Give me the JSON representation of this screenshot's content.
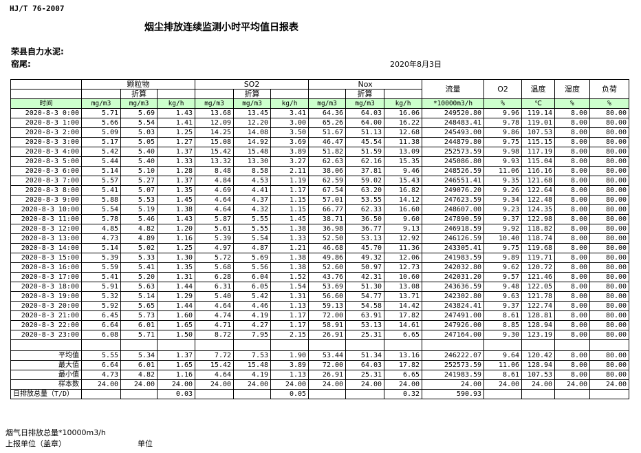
{
  "header": {
    "standard": "HJ/T  76-2007",
    "title": "烟尘排放连续监测小时平均值日报表",
    "company": "荣县自力水泥:",
    "kiln": "窑尾:",
    "date": "2020年8月3日"
  },
  "table": {
    "groups": [
      "颗粒物",
      "SO2",
      "Nox"
    ],
    "converted": "折算",
    "single_headers": [
      "流量",
      "O2",
      "温度",
      "湿度",
      "负荷"
    ],
    "time_header": "时间",
    "units": [
      "mg/m3",
      "mg/m3",
      "kg/h",
      "mg/m3",
      "mg/m3",
      "kg/h",
      "mg/m3",
      "mg/m3",
      "kg/h",
      "*10000m3/h",
      "%",
      "℃",
      "%",
      "%"
    ],
    "rows": [
      {
        "time": "2020-8-3 0:00",
        "values": [
          "5.71",
          "5.69",
          "1.43",
          "13.68",
          "13.45",
          "3.41",
          "64.36",
          "64.03",
          "16.06",
          "249520.80",
          "9.96",
          "119.14",
          "8.00",
          "80.00"
        ]
      },
      {
        "time": "2020-8-3 1:00",
        "values": [
          "5.66",
          "5.54",
          "1.41",
          "12.09",
          "12.20",
          "3.00",
          "65.26",
          "64.00",
          "16.22",
          "248483.41",
          "9.78",
          "119.01",
          "8.00",
          "80.00"
        ]
      },
      {
        "time": "2020-8-3 2:00",
        "values": [
          "5.09",
          "5.03",
          "1.25",
          "14.25",
          "14.08",
          "3.50",
          "51.67",
          "51.13",
          "12.68",
          "245493.00",
          "9.86",
          "107.53",
          "8.00",
          "80.00"
        ]
      },
      {
        "time": "2020-8-3 3:00",
        "values": [
          "5.17",
          "5.05",
          "1.27",
          "15.08",
          "14.92",
          "3.69",
          "46.47",
          "45.54",
          "11.38",
          "244879.80",
          "9.75",
          "115.15",
          "8.00",
          "80.00"
        ]
      },
      {
        "time": "2020-8-3 4:00",
        "values": [
          "5.42",
          "5.40",
          "1.37",
          "15.42",
          "15.48",
          "3.89",
          "51.82",
          "51.59",
          "13.09",
          "252573.59",
          "9.98",
          "117.19",
          "8.00",
          "80.00"
        ]
      },
      {
        "time": "2020-8-3 5:00",
        "values": [
          "5.44",
          "5.40",
          "1.33",
          "13.32",
          "13.30",
          "3.27",
          "62.63",
          "62.16",
          "15.35",
          "245086.80",
          "9.93",
          "115.04",
          "8.00",
          "80.00"
        ]
      },
      {
        "time": "2020-8-3 6:00",
        "values": [
          "5.14",
          "5.10",
          "1.28",
          "8.48",
          "8.58",
          "2.11",
          "38.06",
          "37.81",
          "9.46",
          "248526.59",
          "11.06",
          "116.16",
          "8.00",
          "80.00"
        ]
      },
      {
        "time": "2020-8-3 7:00",
        "values": [
          "5.57",
          "5.27",
          "1.37",
          "4.84",
          "4.53",
          "1.19",
          "62.59",
          "59.02",
          "15.43",
          "246551.41",
          "9.35",
          "121.68",
          "8.00",
          "80.00"
        ]
      },
      {
        "time": "2020-8-3 8:00",
        "values": [
          "5.41",
          "5.07",
          "1.35",
          "4.69",
          "4.41",
          "1.17",
          "67.54",
          "63.20",
          "16.82",
          "249076.20",
          "9.26",
          "122.64",
          "8.00",
          "80.00"
        ]
      },
      {
        "time": "2020-8-3 9:00",
        "values": [
          "5.88",
          "5.53",
          "1.45",
          "4.64",
          "4.37",
          "1.15",
          "57.01",
          "53.55",
          "14.12",
          "247623.59",
          "9.34",
          "122.48",
          "8.00",
          "80.00"
        ]
      },
      {
        "time": "2020-8-3 10:00",
        "values": [
          "5.54",
          "5.19",
          "1.38",
          "4.64",
          "4.32",
          "1.15",
          "66.77",
          "62.33",
          "16.60",
          "248607.00",
          "9.23",
          "124.35",
          "8.00",
          "80.00"
        ]
      },
      {
        "time": "2020-8-3 11:00",
        "values": [
          "5.78",
          "5.46",
          "1.43",
          "5.87",
          "5.55",
          "1.45",
          "38.71",
          "36.50",
          "9.60",
          "247890.59",
          "9.37",
          "122.98",
          "8.00",
          "80.00"
        ]
      },
      {
        "time": "2020-8-3 12:00",
        "values": [
          "4.85",
          "4.82",
          "1.20",
          "5.61",
          "5.55",
          "1.38",
          "36.98",
          "36.77",
          "9.13",
          "246918.59",
          "9.92",
          "118.82",
          "8.00",
          "80.00"
        ]
      },
      {
        "time": "2020-8-3 13:00",
        "values": [
          "4.73",
          "4.89",
          "1.16",
          "5.39",
          "5.54",
          "1.33",
          "52.50",
          "53.13",
          "12.92",
          "246126.59",
          "10.40",
          "118.74",
          "8.00",
          "80.00"
        ]
      },
      {
        "time": "2020-8-3 14:00",
        "values": [
          "5.14",
          "5.02",
          "1.25",
          "4.97",
          "4.87",
          "1.21",
          "46.68",
          "45.70",
          "11.36",
          "243305.41",
          "9.75",
          "119.68",
          "8.00",
          "80.00"
        ]
      },
      {
        "time": "2020-8-3 15:00",
        "values": [
          "5.39",
          "5.33",
          "1.30",
          "5.72",
          "5.69",
          "1.38",
          "49.86",
          "49.32",
          "12.06",
          "241983.59",
          "9.89",
          "119.71",
          "8.00",
          "80.00"
        ]
      },
      {
        "time": "2020-8-3 16:00",
        "values": [
          "5.59",
          "5.41",
          "1.35",
          "5.68",
          "5.56",
          "1.38",
          "52.60",
          "50.97",
          "12.73",
          "242032.80",
          "9.62",
          "120.72",
          "8.00",
          "80.00"
        ]
      },
      {
        "time": "2020-8-3 17:00",
        "values": [
          "5.41",
          "5.20",
          "1.31",
          "6.28",
          "6.04",
          "1.52",
          "43.76",
          "42.31",
          "10.60",
          "242031.20",
          "9.57",
          "121.46",
          "8.00",
          "80.00"
        ]
      },
      {
        "time": "2020-8-3 18:00",
        "values": [
          "5.91",
          "5.63",
          "1.44",
          "6.31",
          "6.05",
          "1.54",
          "53.69",
          "51.30",
          "13.08",
          "243636.59",
          "9.48",
          "122.05",
          "8.00",
          "80.00"
        ]
      },
      {
        "time": "2020-8-3 19:00",
        "values": [
          "5.32",
          "5.14",
          "1.29",
          "5.40",
          "5.42",
          "1.31",
          "56.60",
          "54.77",
          "13.71",
          "242302.80",
          "9.63",
          "121.78",
          "8.00",
          "80.00"
        ]
      },
      {
        "time": "2020-8-3 20:00",
        "values": [
          "5.92",
          "5.65",
          "1.44",
          "4.64",
          "4.46",
          "1.13",
          "59.13",
          "54.58",
          "14.42",
          "243824.41",
          "9.37",
          "122.74",
          "8.00",
          "80.00"
        ]
      },
      {
        "time": "2020-8-3 21:00",
        "values": [
          "6.45",
          "5.73",
          "1.60",
          "4.74",
          "4.19",
          "1.17",
          "72.00",
          "63.91",
          "17.82",
          "247491.00",
          "8.61",
          "128.81",
          "8.00",
          "80.00"
        ]
      },
      {
        "time": "2020-8-3 22:00",
        "values": [
          "6.64",
          "6.01",
          "1.65",
          "4.71",
          "4.27",
          "1.17",
          "58.91",
          "53.13",
          "14.61",
          "247926.00",
          "8.85",
          "128.94",
          "8.00",
          "80.00"
        ]
      },
      {
        "time": "2020-8-3 23:00",
        "values": [
          "6.08",
          "5.71",
          "1.50",
          "8.72",
          "7.95",
          "2.15",
          "26.91",
          "25.31",
          "6.65",
          "247164.00",
          "9.30",
          "123.19",
          "8.00",
          "80.00"
        ]
      }
    ],
    "summary": [
      {
        "label": "平均值",
        "values": [
          "5.55",
          "5.34",
          "1.37",
          "7.72",
          "7.53",
          "1.90",
          "53.44",
          "51.34",
          "13.16",
          "246222.07",
          "9.64",
          "120.42",
          "8.00",
          "80.00"
        ]
      },
      {
        "label": "最大值",
        "values": [
          "6.64",
          "6.01",
          "1.65",
          "15.42",
          "15.48",
          "3.89",
          "72.00",
          "64.03",
          "17.82",
          "252573.59",
          "11.06",
          "128.94",
          "8.00",
          "80.00"
        ]
      },
      {
        "label": "最小值",
        "values": [
          "4.73",
          "4.82",
          "1.16",
          "4.64",
          "4.19",
          "1.13",
          "26.91",
          "25.31",
          "6.65",
          "241983.59",
          "8.61",
          "107.53",
          "8.00",
          "80.00"
        ]
      },
      {
        "label": "样本数",
        "values": [
          "24.00",
          "24.00",
          "24.00",
          "24.00",
          "24.00",
          "24.00",
          "24.00",
          "24.00",
          "24.00",
          "24.00",
          "24.00",
          "24.00",
          "24.00",
          "24.00"
        ]
      }
    ],
    "daily_total": {
      "label": "日排放总量（T/D）",
      "particulate": "0.03",
      "so2": "0.05",
      "nox": "0.32",
      "flow": "590.93"
    }
  },
  "footer": {
    "flue_gas_total": "烟气日排放总量*10000m3/h",
    "reporting_unit": "上报单位（盖章）",
    "unit": "单位"
  }
}
